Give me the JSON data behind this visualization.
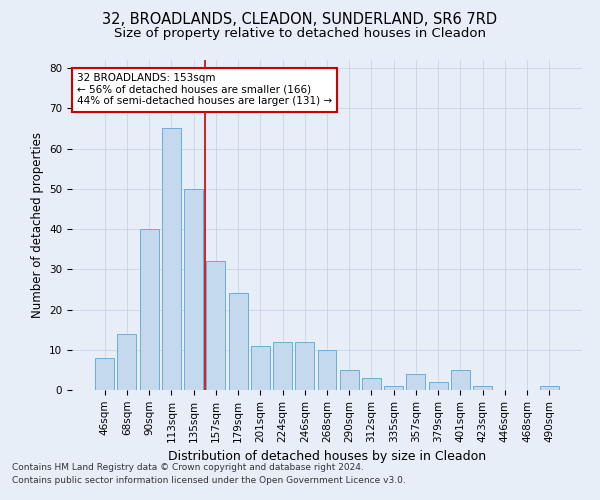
{
  "title_line1": "32, BROADLANDS, CLEADON, SUNDERLAND, SR6 7RD",
  "title_line2": "Size of property relative to detached houses in Cleadon",
  "xlabel": "Distribution of detached houses by size in Cleadon",
  "ylabel": "Number of detached properties",
  "categories": [
    "46sqm",
    "68sqm",
    "90sqm",
    "113sqm",
    "135sqm",
    "157sqm",
    "179sqm",
    "201sqm",
    "224sqm",
    "246sqm",
    "268sqm",
    "290sqm",
    "312sqm",
    "335sqm",
    "357sqm",
    "379sqm",
    "401sqm",
    "423sqm",
    "446sqm",
    "468sqm",
    "490sqm"
  ],
  "values": [
    8,
    14,
    40,
    65,
    50,
    32,
    24,
    11,
    12,
    12,
    10,
    5,
    3,
    1,
    4,
    2,
    5,
    1,
    0,
    0,
    1
  ],
  "bar_color": "#c5d9ee",
  "bar_edge_color": "#6aaed6",
  "grid_color": "#c8d4e8",
  "background_color": "#e8eef8",
  "annotation_line1": "32 BROADLANDS: 153sqm",
  "annotation_line2": "← 56% of detached houses are smaller (166)",
  "annotation_line3": "44% of semi-detached houses are larger (131) →",
  "annotation_box_color": "#ffffff",
  "annotation_box_edge": "#cc0000",
  "vline_color": "#cc0000",
  "vline_x_index": 4.5,
  "ylim": [
    0,
    82
  ],
  "yticks": [
    0,
    10,
    20,
    30,
    40,
    50,
    60,
    70,
    80
  ],
  "footer_line1": "Contains HM Land Registry data © Crown copyright and database right 2024.",
  "footer_line2": "Contains public sector information licensed under the Open Government Licence v3.0.",
  "title_fontsize": 10.5,
  "subtitle_fontsize": 9.5,
  "xlabel_fontsize": 9,
  "ylabel_fontsize": 8.5,
  "tick_fontsize": 7.5,
  "annotation_fontsize": 7.5,
  "footer_fontsize": 6.5
}
